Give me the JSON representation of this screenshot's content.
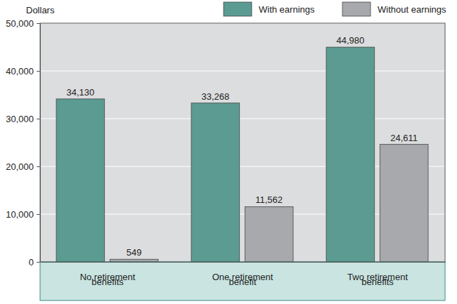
{
  "chart_data": {
    "type": "bar",
    "y_label": "Dollars",
    "categories": [
      "No retirement benefits",
      "One retirement benefit",
      "Two retirement benefits"
    ],
    "series": [
      {
        "name": "With earnings",
        "color": "#5b9b92",
        "values": [
          34130,
          33268,
          44980
        ],
        "value_labels": [
          "34,130",
          "33,268",
          "44,980"
        ]
      },
      {
        "name": "Without earnings",
        "color": "#a7a9ac",
        "values": [
          549,
          11562,
          24611
        ],
        "value_labels": [
          "549",
          "11,562",
          "24,611"
        ]
      }
    ],
    "ylim": [
      0,
      50000
    ],
    "yticks": [
      0,
      {
        "value": 10000,
        "label": "10,000"
      },
      {
        "value": 20000,
        "label": "20,000"
      },
      {
        "value": 30000,
        "label": "30,000"
      },
      {
        "value": 40000,
        "label": "40,000"
      },
      {
        "value": 50000,
        "label": "50,000"
      }
    ],
    "grid": true,
    "legend": "top-right",
    "data_labels": true
  }
}
